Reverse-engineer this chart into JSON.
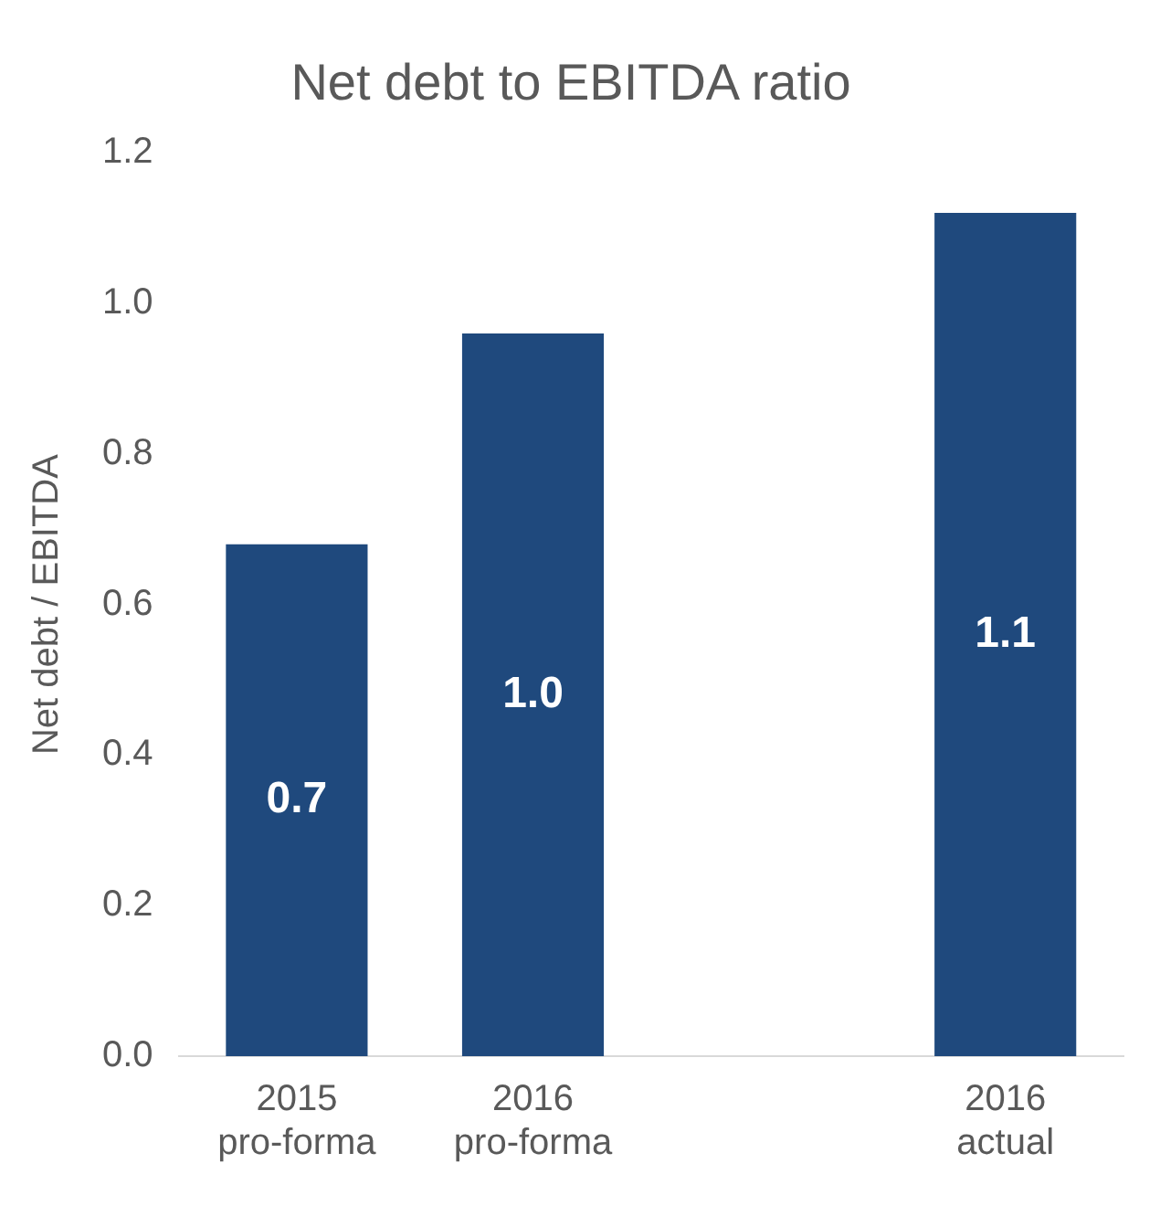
{
  "chart_data": {
    "type": "bar",
    "title": "Net debt to EBITDA ratio",
    "ylabel": "Net debt / EBITDA",
    "categories": [
      "2015 pro-forma",
      "2016 pro-forma",
      null,
      "2016 actual"
    ],
    "values": [
      0.68,
      0.96,
      null,
      1.12
    ],
    "value_labels": [
      "0.7",
      "1.0",
      null,
      "1.1"
    ],
    "color": "#1f497d",
    "ylim": [
      0,
      1.2
    ],
    "yticks": [
      {
        "value": 0,
        "label": "0.0"
      },
      {
        "value": 0.2,
        "label": "0.2"
      },
      {
        "value": 0.4,
        "label": "0.4"
      },
      {
        "value": 0.6,
        "label": "0.6"
      },
      {
        "value": 0.8,
        "label": "0.8"
      },
      {
        "value": 1,
        "label": "1.0"
      },
      {
        "value": 1.2,
        "label": "1.2"
      }
    ],
    "grid": false,
    "legend": false
  }
}
